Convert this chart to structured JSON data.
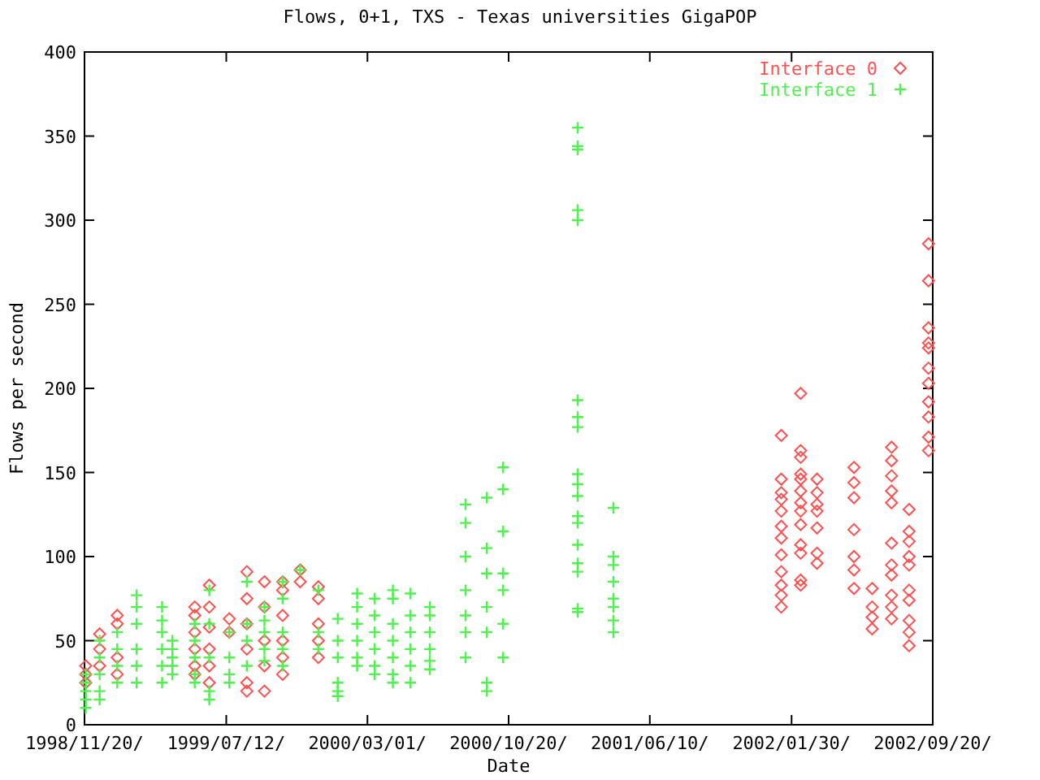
{
  "chart_data": {
    "type": "scatter",
    "title": "Flows, 0+1, TXS - Texas universities GigaPOP",
    "xlabel": "Date",
    "ylabel": "Flows per second",
    "xlim": [
      "1998-11-20",
      "2002-09-20"
    ],
    "xticks": [
      {
        "value": "1998-11-20",
        "label": "1998/11/20/"
      },
      {
        "value": "1999-07-12",
        "label": "1999/07/12/"
      },
      {
        "value": "2000-03-01",
        "label": "2000/03/01/"
      },
      {
        "value": "2000-10-20",
        "label": "2000/10/20/"
      },
      {
        "value": "2001-06-10",
        "label": "2001/06/10/"
      },
      {
        "value": "2002-01-30",
        "label": "2002/01/30/"
      },
      {
        "value": "2002-09-20",
        "label": "2002/09/20/"
      }
    ],
    "ylim": [
      0,
      400
    ],
    "yticks": [
      0,
      50,
      100,
      150,
      200,
      250,
      300,
      350,
      400
    ],
    "legend": "top right",
    "series": [
      {
        "name": "Interface 0",
        "color": "#ff5050",
        "marker": "diamond",
        "x": [
          "1998-11-22",
          "1998-11-22",
          "1998-11-22",
          "1998-12-15",
          "1998-12-15",
          "1998-12-15",
          "1999-01-13",
          "1999-01-13",
          "1999-01-13",
          "1999-01-13",
          "1999-05-21",
          "1999-05-21",
          "1999-05-21",
          "1999-05-21",
          "1999-05-21",
          "1999-05-21",
          "1999-06-14",
          "1999-06-14",
          "1999-06-14",
          "1999-06-14",
          "1999-06-14",
          "1999-06-14",
          "1999-07-17",
          "1999-07-17",
          "1999-08-15",
          "1999-08-15",
          "1999-08-15",
          "1999-08-15",
          "1999-08-15",
          "1999-08-15",
          "1999-09-13",
          "1999-09-13",
          "1999-09-13",
          "1999-09-13",
          "1999-09-13",
          "1999-10-13",
          "1999-10-13",
          "1999-10-13",
          "1999-10-13",
          "1999-10-13",
          "1999-10-13",
          "1999-11-11",
          "1999-11-11",
          "1999-12-11",
          "1999-12-11",
          "1999-12-11",
          "1999-12-11",
          "1999-12-11",
          "2002-01-13",
          "2002-01-13",
          "2002-01-13",
          "2002-01-13",
          "2002-01-13",
          "2002-01-13",
          "2002-01-13",
          "2002-01-13",
          "2002-01-13",
          "2002-01-13",
          "2002-01-13",
          "2002-01-13",
          "2002-02-14",
          "2002-02-14",
          "2002-02-14",
          "2002-02-14",
          "2002-02-14",
          "2002-02-14",
          "2002-02-14",
          "2002-02-14",
          "2002-02-14",
          "2002-02-14",
          "2002-02-14",
          "2002-02-14",
          "2002-02-14",
          "2002-03-13",
          "2002-03-13",
          "2002-03-13",
          "2002-03-13",
          "2002-03-13",
          "2002-03-13",
          "2002-03-13",
          "2002-05-13",
          "2002-05-13",
          "2002-05-13",
          "2002-05-13",
          "2002-05-13",
          "2002-05-13",
          "2002-05-13",
          "2002-06-12",
          "2002-06-12",
          "2002-06-12",
          "2002-06-12",
          "2002-07-14",
          "2002-07-14",
          "2002-07-14",
          "2002-07-14",
          "2002-07-14",
          "2002-07-14",
          "2002-07-14",
          "2002-07-14",
          "2002-07-14",
          "2002-07-14",
          "2002-07-14",
          "2002-08-12",
          "2002-08-12",
          "2002-08-12",
          "2002-08-12",
          "2002-08-12",
          "2002-08-12",
          "2002-08-12",
          "2002-08-12",
          "2002-08-12",
          "2002-08-12",
          "2002-09-13",
          "2002-09-13",
          "2002-09-13",
          "2002-09-13",
          "2002-09-13",
          "2002-09-13",
          "2002-09-13",
          "2002-09-13",
          "2002-09-13",
          "2002-09-13",
          "2002-09-13"
        ],
        "values": [
          35,
          30,
          25,
          54,
          45,
          35,
          65,
          60,
          40,
          30,
          70,
          65,
          55,
          45,
          35,
          30,
          83,
          70,
          58,
          45,
          35,
          25,
          63,
          55,
          91,
          75,
          60,
          45,
          25,
          20,
          85,
          70,
          50,
          35,
          20,
          85,
          80,
          65,
          50,
          40,
          30,
          92,
          85,
          82,
          75,
          60,
          50,
          40,
          172,
          146,
          138,
          134,
          127,
          118,
          111,
          101,
          91,
          83,
          77,
          70,
          197,
          163,
          159,
          149,
          146,
          139,
          132,
          127,
          119,
          107,
          102,
          86,
          83,
          146,
          138,
          131,
          127,
          117,
          102,
          96,
          153,
          144,
          135,
          116,
          100,
          92,
          81,
          81,
          70,
          64,
          57,
          165,
          157,
          148,
          139,
          132,
          108,
          95,
          89,
          77,
          70,
          63,
          128,
          115,
          109,
          100,
          95,
          80,
          74,
          62,
          55,
          47,
          286,
          264,
          236,
          227,
          224,
          212,
          203,
          192,
          183,
          171,
          163
        ]
      },
      {
        "name": "Interface 1",
        "color": "#50f050",
        "marker": "cross",
        "x": [
          "1998-11-22",
          "1998-11-22",
          "1998-11-22",
          "1998-11-22",
          "1998-11-22",
          "1998-12-15",
          "1998-12-15",
          "1998-12-15",
          "1998-12-15",
          "1998-12-15",
          "1999-01-13",
          "1999-01-13",
          "1999-01-13",
          "1999-01-13",
          "1999-02-14",
          "1999-02-14",
          "1999-02-14",
          "1999-02-14",
          "1999-02-14",
          "1999-02-14",
          "1999-03-28",
          "1999-03-28",
          "1999-03-28",
          "1999-03-28",
          "1999-03-28",
          "1999-03-28",
          "1999-04-14",
          "1999-04-14",
          "1999-04-14",
          "1999-04-14",
          "1999-04-14",
          "1999-05-21",
          "1999-05-21",
          "1999-05-21",
          "1999-05-21",
          "1999-05-21",
          "1999-06-14",
          "1999-06-14",
          "1999-06-14",
          "1999-06-14",
          "1999-06-14",
          "1999-07-17",
          "1999-07-17",
          "1999-07-17",
          "1999-07-17",
          "1999-08-15",
          "1999-08-15",
          "1999-08-15",
          "1999-08-15",
          "1999-09-13",
          "1999-09-13",
          "1999-09-13",
          "1999-09-13",
          "1999-09-13",
          "1999-10-13",
          "1999-10-13",
          "1999-10-13",
          "1999-10-13",
          "1999-10-13",
          "1999-11-11",
          "1999-12-11",
          "1999-12-11",
          "1999-12-11",
          "2000-01-12",
          "2000-01-12",
          "2000-01-12",
          "2000-01-12",
          "2000-01-12",
          "2000-01-12",
          "2000-02-13",
          "2000-02-13",
          "2000-02-13",
          "2000-02-13",
          "2000-02-13",
          "2000-02-13",
          "2000-03-13",
          "2000-03-13",
          "2000-03-13",
          "2000-03-13",
          "2000-03-13",
          "2000-03-13",
          "2000-04-12",
          "2000-04-12",
          "2000-04-12",
          "2000-04-12",
          "2000-04-12",
          "2000-04-12",
          "2000-04-12",
          "2000-05-11",
          "2000-05-11",
          "2000-05-11",
          "2000-05-11",
          "2000-05-11",
          "2000-05-11",
          "2000-06-12",
          "2000-06-12",
          "2000-06-12",
          "2000-06-12",
          "2000-06-12",
          "2000-06-12",
          "2000-08-10",
          "2000-08-10",
          "2000-08-10",
          "2000-08-10",
          "2000-08-10",
          "2000-08-10",
          "2000-08-10",
          "2000-09-14",
          "2000-09-14",
          "2000-09-14",
          "2000-09-14",
          "2000-09-14",
          "2000-09-14",
          "2000-09-14",
          "2000-10-11",
          "2000-10-11",
          "2000-10-11",
          "2000-10-11",
          "2000-10-11",
          "2000-10-11",
          "2000-10-11",
          "2001-02-11",
          "2001-02-11",
          "2001-02-11",
          "2001-02-11",
          "2001-02-11",
          "2001-02-11",
          "2001-02-11",
          "2001-02-11",
          "2001-02-11",
          "2001-02-11",
          "2001-02-11",
          "2001-02-11",
          "2001-02-11",
          "2001-02-11",
          "2001-02-11",
          "2001-02-11",
          "2001-02-11",
          "2001-02-11",
          "2001-04-11",
          "2001-04-11",
          "2001-04-11",
          "2001-04-11",
          "2001-04-11",
          "2001-04-11",
          "2001-04-11",
          "2001-04-11"
        ],
        "values": [
          30,
          25,
          20,
          15,
          10,
          50,
          40,
          30,
          20,
          15,
          55,
          45,
          35,
          25,
          77,
          70,
          60,
          45,
          35,
          25,
          70,
          62,
          55,
          45,
          35,
          25,
          50,
          45,
          40,
          35,
          30,
          60,
          50,
          40,
          30,
          25,
          80,
          60,
          40,
          20,
          15,
          55,
          40,
          30,
          25,
          85,
          60,
          50,
          35,
          70,
          62,
          55,
          45,
          38,
          85,
          75,
          55,
          45,
          35,
          92,
          80,
          55,
          45,
          63,
          50,
          40,
          25,
          20,
          17,
          78,
          70,
          60,
          50,
          40,
          35,
          75,
          65,
          55,
          45,
          35,
          30,
          80,
          75,
          60,
          50,
          40,
          30,
          25,
          78,
          65,
          55,
          45,
          35,
          25,
          70,
          65,
          55,
          45,
          38,
          33,
          131,
          120,
          100,
          80,
          65,
          55,
          40,
          135,
          105,
          90,
          70,
          55,
          25,
          20,
          153,
          140,
          115,
          90,
          80,
          60,
          40,
          355,
          344,
          342,
          306,
          300,
          193,
          183,
          177,
          149,
          143,
          136,
          124,
          120,
          107,
          96,
          91,
          69,
          67,
          129,
          100,
          95,
          85,
          75,
          70,
          62,
          55
        ]
      }
    ]
  }
}
